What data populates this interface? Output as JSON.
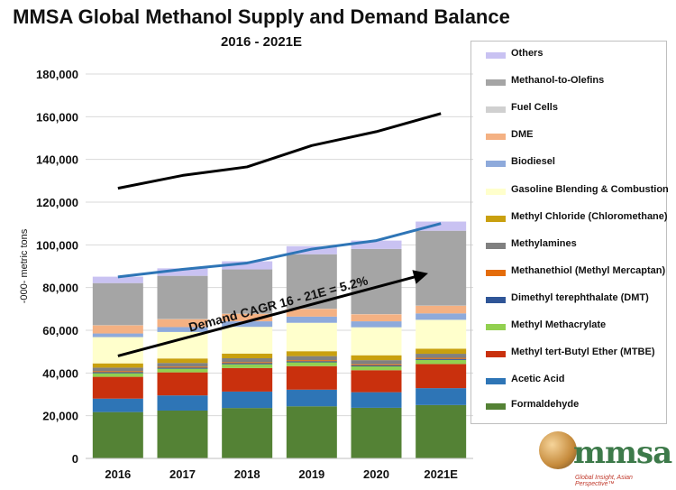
{
  "chart_data": {
    "type": "bar",
    "stacked": true,
    "title": "MMSA Global Methanol Supply and Demand Balance",
    "subtitle": "2016 - 2021E",
    "ylabel": "-000- metric tons",
    "xlabel": "",
    "ylim": [
      0,
      180000
    ],
    "yticks": [
      "0",
      "20,000",
      "40,000",
      "60,000",
      "80,000",
      "100,000",
      "120,000",
      "140,000",
      "160,000",
      "180,000"
    ],
    "grid": true,
    "legend_position": "right",
    "categories": [
      "2016",
      "2017",
      "2018",
      "2019",
      "2020",
      "2021E"
    ],
    "series": [
      {
        "name": "Formaldehyde",
        "color": "#548235",
        "values": [
          21700,
          22400,
          23600,
          24400,
          23700,
          25000
        ]
      },
      {
        "name": "Acetic Acid",
        "color": "#2e75b6",
        "values": [
          6300,
          7100,
          7700,
          7800,
          7300,
          7900
        ]
      },
      {
        "name": "Methyl tert-Butyl Ether (MTBE)",
        "color": "#c9300d",
        "values": [
          10200,
          10800,
          11000,
          11000,
          10300,
          11300
        ]
      },
      {
        "name": "Methyl Methacrylate",
        "color": "#92d050",
        "values": [
          1700,
          1700,
          1800,
          1800,
          1800,
          1900
        ]
      },
      {
        "name": "Dimethyl terephthalate (DMT)",
        "color": "#2f5597",
        "values": [
          500,
          500,
          500,
          500,
          500,
          500
        ]
      },
      {
        "name": "Methanethiol (Methyl Mercaptan)",
        "color": "#e46c0a",
        "values": [
          500,
          500,
          500,
          500,
          500,
          500
        ]
      },
      {
        "name": "Methylamines",
        "color": "#808080",
        "values": [
          1600,
          1700,
          1800,
          1900,
          1900,
          1900
        ]
      },
      {
        "name": "Methyl Chloride (Chloromethane)",
        "color": "#c9a00f",
        "values": [
          2000,
          2100,
          2200,
          2300,
          2300,
          2400
        ]
      },
      {
        "name": "Gasoline Blending & Combustion",
        "color": "#ffffcc",
        "values": [
          12300,
          12400,
          12500,
          13300,
          13100,
          13500
        ]
      },
      {
        "name": "Biodiesel",
        "color": "#8eaadb",
        "values": [
          1700,
          2300,
          2600,
          2900,
          2800,
          3000
        ]
      },
      {
        "name": "DME",
        "color": "#f4b183",
        "values": [
          3800,
          3700,
          3500,
          3600,
          3300,
          3600
        ]
      },
      {
        "name": "Fuel Cells",
        "color": "#d0d0d0",
        "values": [
          100,
          100,
          100,
          100,
          100,
          100
        ]
      },
      {
        "name": "Methanol-to-Olefins",
        "color": "#a5a5a5",
        "values": [
          19700,
          20200,
          20700,
          25500,
          30500,
          35000
        ]
      },
      {
        "name": "Others",
        "color": "#c9c2f2",
        "values": [
          3000,
          3500,
          3800,
          3800,
          3900,
          4300
        ]
      }
    ],
    "lines": [
      {
        "color": "#000000",
        "values": [
          126500,
          132500,
          136500,
          146500,
          153000,
          161500
        ]
      },
      {
        "color": "#2e75b6",
        "values": [
          85000,
          88500,
          91500,
          98000,
          102000,
          110000
        ]
      }
    ],
    "annotation": {
      "text": "Demand CAGR 16 - 21E = 5.2%",
      "arrow_from": [
        "2016",
        48000
      ],
      "arrow_to": [
        "2021E",
        86000
      ]
    }
  },
  "logo": {
    "name": "mmsa",
    "tagline": "Global Insight, Asian Perspective™"
  }
}
